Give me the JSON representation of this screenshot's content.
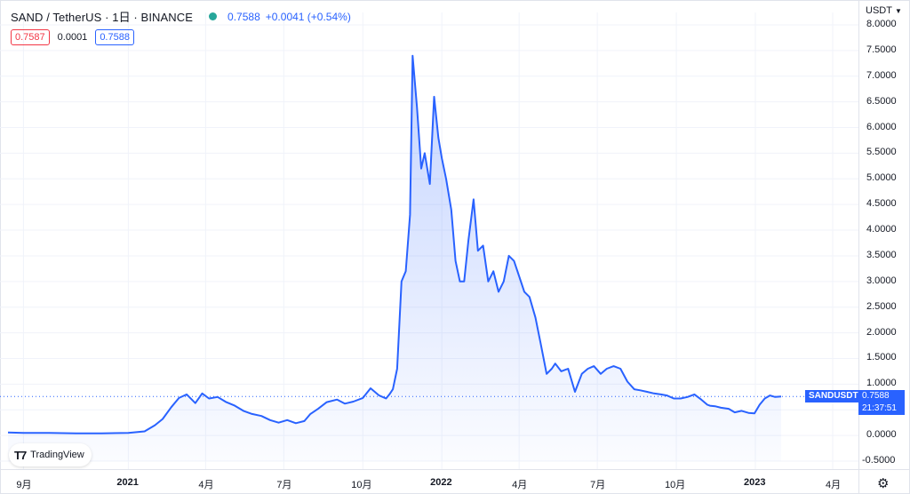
{
  "header": {
    "symbol": "SAND / TetherUS · 1日 · BINANCE",
    "last_price": "0.7588",
    "change": "+0.0041 (+0.54%)",
    "status_color": "#26a69a"
  },
  "quote_boxes": {
    "sell": "0.7587",
    "spread": "0.0001",
    "buy": "0.7588"
  },
  "currency_selector": {
    "label": "USDT"
  },
  "price_tag": {
    "name": "SANDUSDT",
    "price": "0.7588",
    "countdown": "21:37:51"
  },
  "branding": {
    "logo_text": "TradingView"
  },
  "icons": {
    "settings": "gear-icon",
    "logo": "tradingview-logo-icon",
    "currency_chevron": "chevron-down-icon"
  },
  "colors": {
    "line": "#2962ff",
    "fill_top": "rgba(41,98,255,0.28)",
    "fill_bottom": "rgba(41,98,255,0.02)",
    "grid": "#f0f3fa"
  },
  "chart_data": {
    "type": "area",
    "title": "",
    "xlabel": "",
    "ylabel": "",
    "x_axis_labels": [
      "9月",
      "2021",
      "4月",
      "7月",
      "10月",
      "2022",
      "4月",
      "7月",
      "10月",
      "2023",
      "4月"
    ],
    "y_axis_labels": [
      "8.0000",
      "7.5000",
      "7.0000",
      "6.5000",
      "6.0000",
      "5.5000",
      "5.0000",
      "4.5000",
      "4.0000",
      "3.5000",
      "3.0000",
      "2.5000",
      "2.0000",
      "1.5000",
      "1.0000",
      "0.5000",
      "0.0000",
      "-0.5000"
    ],
    "ylim": [
      -0.5,
      8.0
    ],
    "xlim": [
      "2020-08-15",
      "2023-05-01"
    ],
    "grid": true,
    "current_price_line": 0.7588,
    "series": [
      {
        "x": [
          "2020-08-14",
          "2020-09-01",
          "2020-10-01",
          "2020-11-01",
          "2020-12-01",
          "2021-01-01",
          "2021-01-20",
          "2021-02-01",
          "2021-02-10",
          "2021-02-20",
          "2021-03-01",
          "2021-03-10",
          "2021-03-20",
          "2021-03-28",
          "2021-04-05",
          "2021-04-15",
          "2021-04-25",
          "2021-05-05",
          "2021-05-15",
          "2021-05-25",
          "2021-06-05",
          "2021-06-15",
          "2021-06-25",
          "2021-07-05",
          "2021-07-15",
          "2021-07-25",
          "2021-08-01",
          "2021-08-10",
          "2021-08-20",
          "2021-09-01",
          "2021-09-10",
          "2021-09-20",
          "2021-10-01",
          "2021-10-10",
          "2021-10-20",
          "2021-10-28",
          "2021-11-01",
          "2021-11-05",
          "2021-11-10",
          "2021-11-15",
          "2021-11-20",
          "2021-11-25",
          "2021-11-28",
          "2021-12-03",
          "2021-12-08",
          "2021-12-12",
          "2021-12-18",
          "2021-12-23",
          "2021-12-28",
          "2022-01-01",
          "2022-01-06",
          "2022-01-12",
          "2022-01-17",
          "2022-01-22",
          "2022-01-27",
          "2022-02-01",
          "2022-02-07",
          "2022-02-12",
          "2022-02-18",
          "2022-02-24",
          "2022-03-02",
          "2022-03-08",
          "2022-03-14",
          "2022-03-20",
          "2022-03-26",
          "2022-04-01",
          "2022-04-07",
          "2022-04-13",
          "2022-04-20",
          "2022-04-26",
          "2022-05-03",
          "2022-05-09",
          "2022-05-13",
          "2022-05-20",
          "2022-05-28",
          "2022-06-05",
          "2022-06-13",
          "2022-06-20",
          "2022-06-27",
          "2022-07-05",
          "2022-07-12",
          "2022-07-20",
          "2022-07-28",
          "2022-08-05",
          "2022-08-13",
          "2022-08-20",
          "2022-08-28",
          "2022-09-05",
          "2022-09-13",
          "2022-09-20",
          "2022-09-28",
          "2022-10-06",
          "2022-10-14",
          "2022-10-22",
          "2022-10-30",
          "2022-11-06",
          "2022-11-09",
          "2022-11-15",
          "2022-11-22",
          "2022-12-01",
          "2022-12-08",
          "2022-12-16",
          "2022-12-24",
          "2022-12-31",
          "2023-01-06",
          "2023-01-12",
          "2023-01-18",
          "2023-01-24",
          "2023-01-31"
        ],
        "values": [
          0.06,
          0.05,
          0.05,
          0.04,
          0.04,
          0.05,
          0.08,
          0.2,
          0.32,
          0.55,
          0.73,
          0.8,
          0.63,
          0.82,
          0.72,
          0.75,
          0.65,
          0.58,
          0.48,
          0.42,
          0.38,
          0.3,
          0.25,
          0.3,
          0.24,
          0.28,
          0.42,
          0.52,
          0.65,
          0.7,
          0.62,
          0.66,
          0.73,
          0.92,
          0.78,
          0.72,
          0.8,
          0.9,
          1.3,
          3.0,
          3.2,
          4.3,
          7.4,
          6.4,
          5.2,
          5.5,
          4.9,
          6.6,
          5.8,
          5.4,
          5.0,
          4.4,
          3.4,
          3.0,
          3.0,
          3.8,
          4.6,
          3.6,
          3.7,
          3.0,
          3.2,
          2.8,
          3.0,
          3.5,
          3.4,
          3.1,
          2.8,
          2.7,
          2.3,
          1.8,
          1.2,
          1.3,
          1.4,
          1.25,
          1.3,
          0.85,
          1.2,
          1.3,
          1.35,
          1.2,
          1.3,
          1.35,
          1.3,
          1.05,
          0.9,
          0.88,
          0.85,
          0.82,
          0.8,
          0.78,
          0.72,
          0.72,
          0.75,
          0.8,
          0.7,
          0.6,
          0.58,
          0.57,
          0.54,
          0.52,
          0.45,
          0.48,
          0.44,
          0.43,
          0.6,
          0.72,
          0.78,
          0.75,
          0.76
        ]
      }
    ]
  }
}
